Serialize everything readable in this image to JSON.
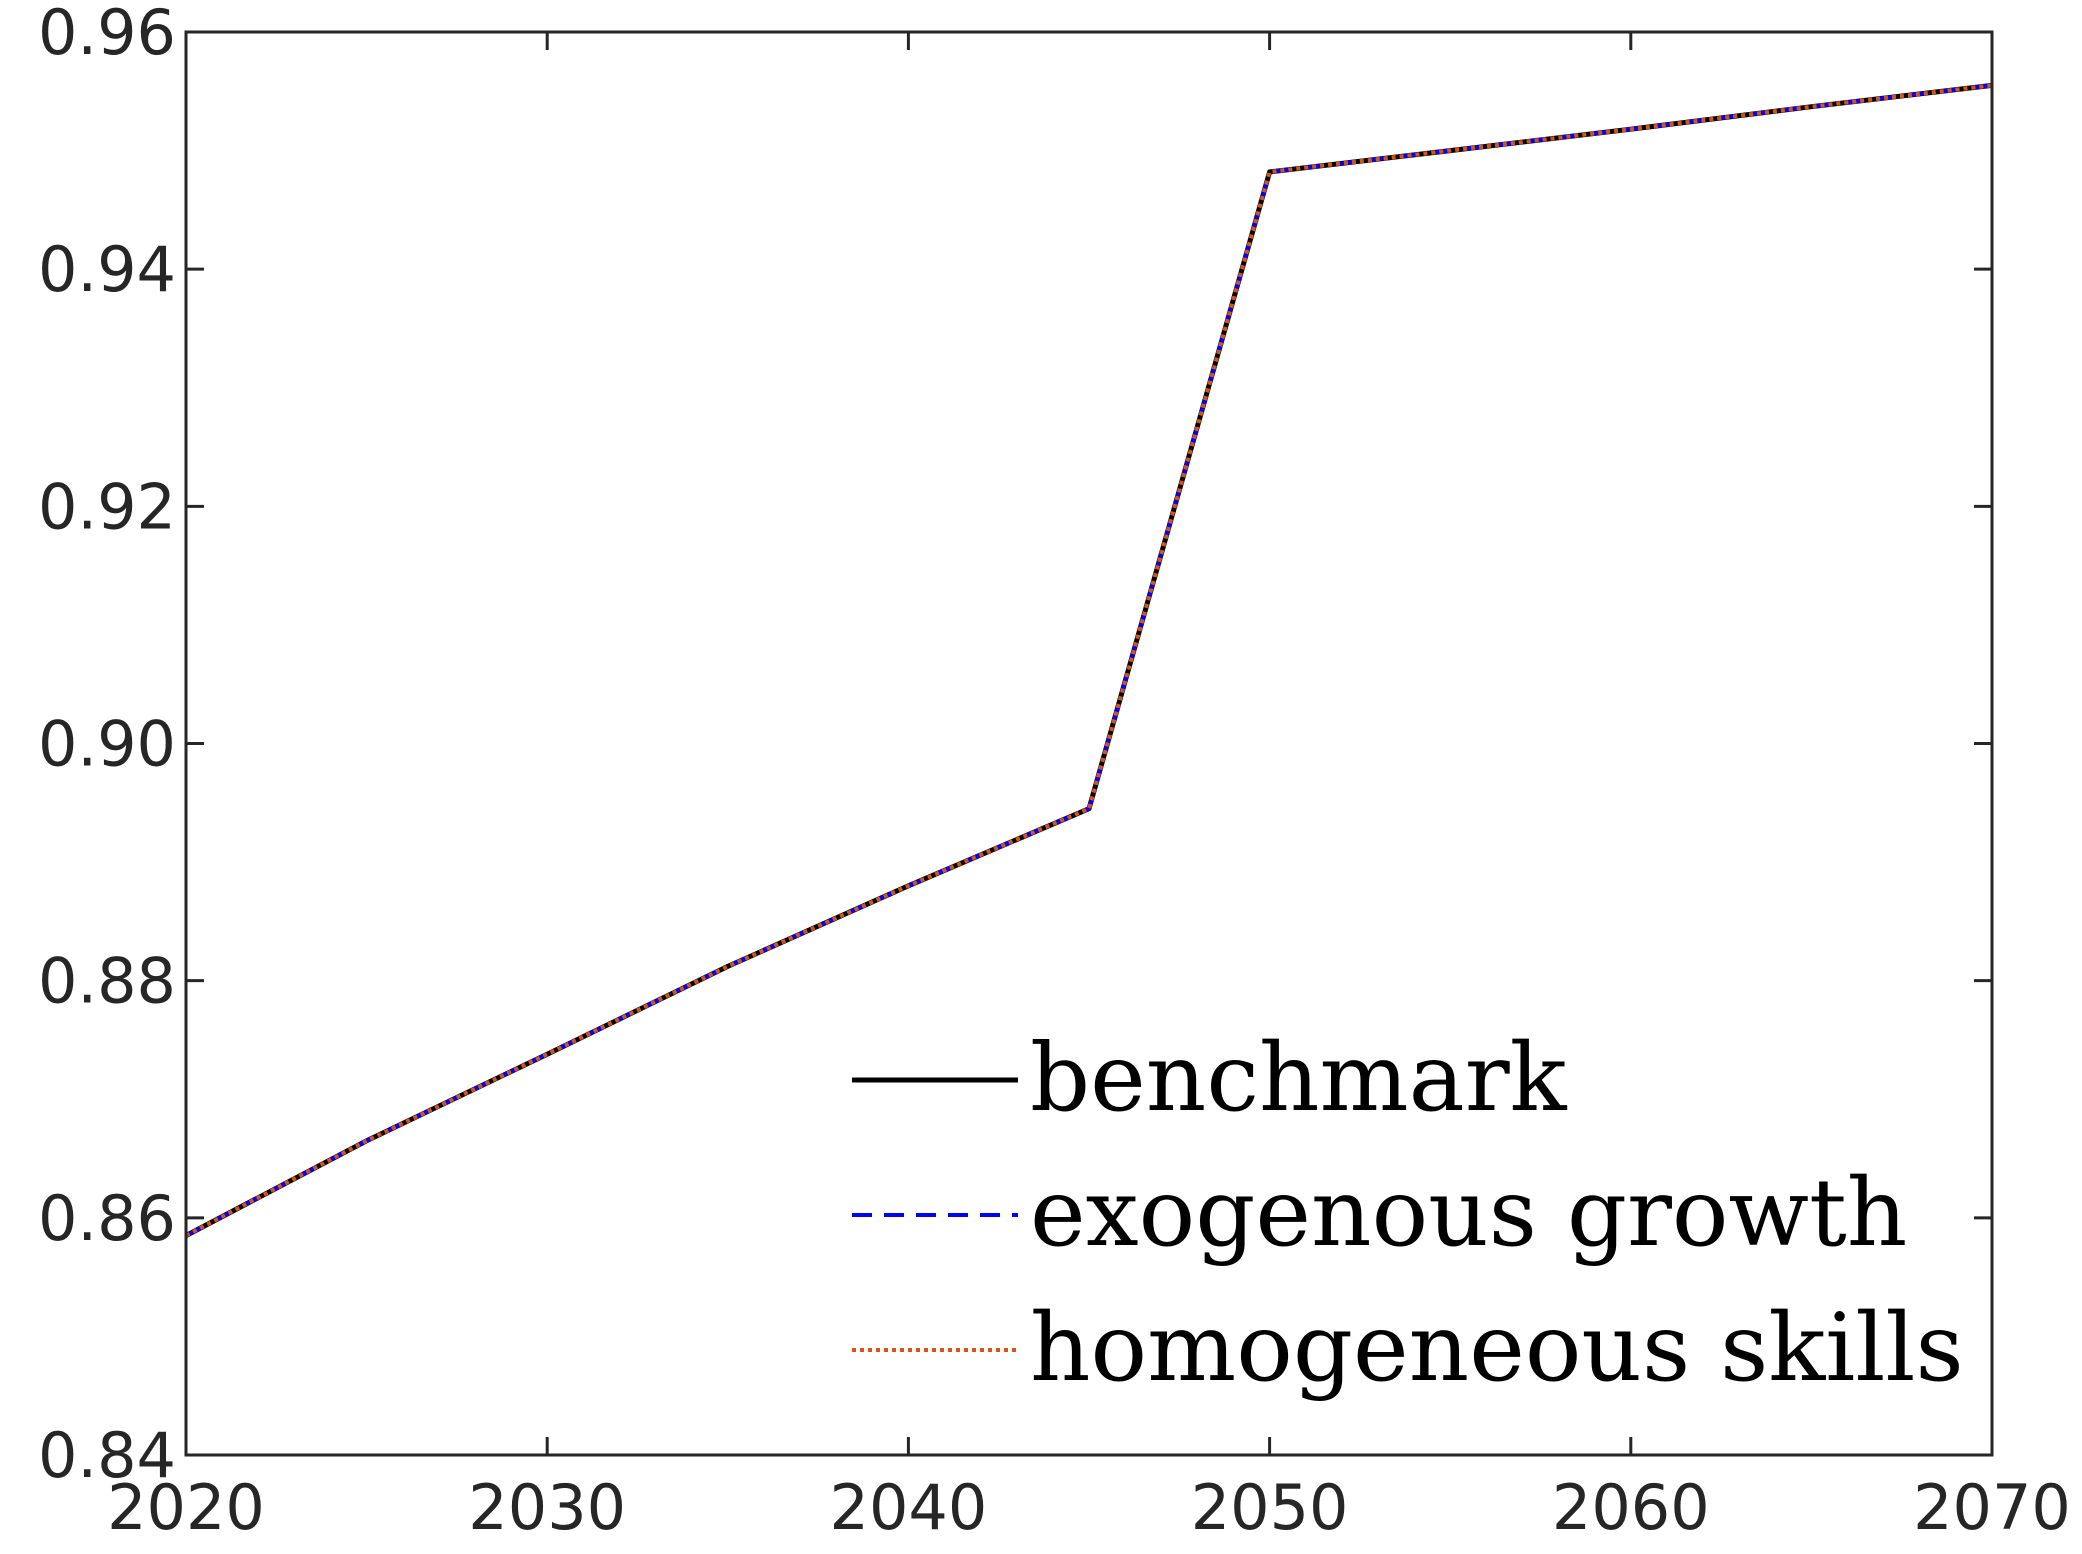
{
  "chart_data": {
    "type": "line",
    "title": "",
    "xlabel": "",
    "ylabel": "",
    "xlim": [
      2020,
      2070
    ],
    "ylim": [
      0.84,
      0.96
    ],
    "x_ticks": [
      2020,
      2030,
      2040,
      2050,
      2060,
      2070
    ],
    "x_tick_labels": [
      "2020",
      "2030",
      "2040",
      "2050",
      "2060",
      "2070"
    ],
    "y_ticks": [
      0.84,
      0.86,
      0.88,
      0.9,
      0.92,
      0.94,
      0.96
    ],
    "y_tick_labels": [
      "0.84",
      "0.86",
      "0.88",
      "0.90",
      "0.92",
      "0.94",
      "0.96"
    ],
    "grid": false,
    "legend_position": "bottom-right",
    "series": [
      {
        "name": "benchmark",
        "color": "#000000",
        "line_style": "solid",
        "x": [
          2020,
          2025,
          2030,
          2035,
          2040,
          2045,
          2050,
          2055,
          2060,
          2065,
          2070
        ],
        "y": [
          0.8585,
          0.8665,
          0.8738,
          0.8812,
          0.888,
          0.8945,
          0.9482,
          0.95,
          0.9518,
          0.9537,
          0.9555
        ]
      },
      {
        "name": "exogenous growth",
        "color": "#0000ff",
        "line_style": "dashed",
        "x": [
          2020,
          2025,
          2030,
          2035,
          2040,
          2045,
          2050,
          2055,
          2060,
          2065,
          2070
        ],
        "y": [
          0.8585,
          0.8665,
          0.8738,
          0.8812,
          0.888,
          0.8945,
          0.9482,
          0.95,
          0.9518,
          0.9537,
          0.9555
        ]
      },
      {
        "name": "homogeneous skills",
        "color": "#d95319",
        "line_style": "dotted",
        "x": [
          2020,
          2025,
          2030,
          2035,
          2040,
          2045,
          2050,
          2055,
          2060,
          2065,
          2070
        ],
        "y": [
          0.8585,
          0.8665,
          0.8738,
          0.8812,
          0.888,
          0.8945,
          0.9482,
          0.95,
          0.9518,
          0.9537,
          0.9555
        ]
      }
    ]
  }
}
